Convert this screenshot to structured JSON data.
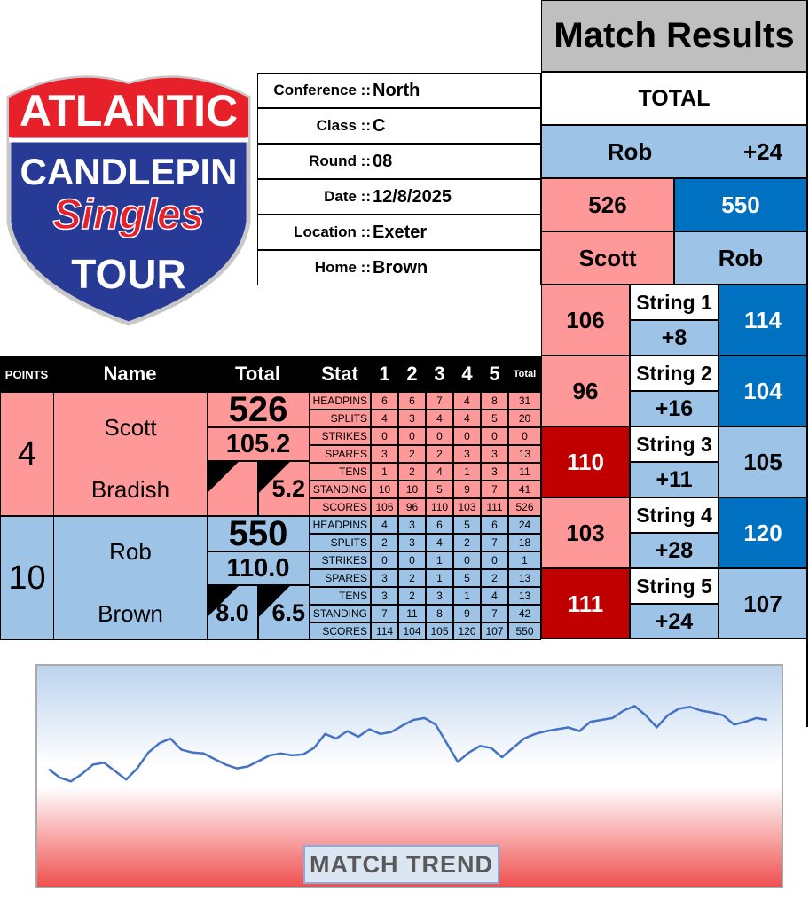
{
  "logo": {
    "line1": "ATLANTIC",
    "line2": "CANDLEPIN",
    "line3": "Singles",
    "line4": "TOUR"
  },
  "info": [
    {
      "label": "Conference ::",
      "value": "North"
    },
    {
      "label": "Class ::",
      "value": "C"
    },
    {
      "label": "Round ::",
      "value": "08"
    },
    {
      "label": "Date ::",
      "value": "12/8/2025"
    },
    {
      "label": "Location ::",
      "value": "Exeter"
    },
    {
      "label": "Home ::",
      "value": "Brown"
    }
  ],
  "results": {
    "title": "Match Results",
    "total_label": "TOTAL",
    "leader": "Rob",
    "margin": "+24",
    "scores": [
      "526",
      "550"
    ],
    "names": [
      "Scott",
      "Rob"
    ],
    "strings": [
      {
        "left": "106",
        "label": "String 1",
        "diff": "+8",
        "right": "114"
      },
      {
        "left": "96",
        "label": "String 2",
        "diff": "+16",
        "right": "104"
      },
      {
        "left": "110",
        "label": "String 3",
        "diff": "+11",
        "right": "105"
      },
      {
        "left": "103",
        "label": "String 4",
        "diff": "+28",
        "right": "120"
      },
      {
        "left": "111",
        "label": "String 5",
        "diff": "+24",
        "right": "107"
      }
    ]
  },
  "table": {
    "header": [
      "POINTS",
      "Name",
      "Total",
      "Stat",
      "1",
      "2",
      "3",
      "4",
      "5",
      "Total"
    ],
    "players": [
      {
        "points": "4",
        "first": "Scott",
        "last": "Bradish",
        "total": "526",
        "average": "105.2",
        "right_stat": "5.2",
        "stats": [
          {
            "name": "HEADPINS",
            "values": [
              6,
              6,
              7,
              4,
              8,
              31
            ]
          },
          {
            "name": "SPLITS",
            "values": [
              4,
              3,
              4,
              4,
              5,
              20
            ]
          },
          {
            "name": "STRIKES",
            "values": [
              0,
              0,
              0,
              0,
              0,
              0
            ]
          },
          {
            "name": "SPARES",
            "values": [
              3,
              2,
              2,
              3,
              3,
              13
            ]
          },
          {
            "name": "TENS",
            "values": [
              1,
              2,
              4,
              1,
              3,
              11
            ]
          },
          {
            "name": "STANDING",
            "values": [
              10,
              10,
              5,
              9,
              7,
              41
            ]
          },
          {
            "name": "SCORES",
            "values": [
              106,
              96,
              110,
              103,
              111,
              526
            ]
          }
        ]
      },
      {
        "points": "10",
        "first": "Rob",
        "last": "Brown",
        "total": "550",
        "average": "110.0",
        "left_stat": "8.0",
        "right_stat": "6.5",
        "stats": [
          {
            "name": "HEADPINS",
            "values": [
              4,
              3,
              6,
              5,
              6,
              24
            ]
          },
          {
            "name": "SPLITS",
            "values": [
              2,
              3,
              4,
              2,
              7,
              18
            ]
          },
          {
            "name": "STRIKES",
            "values": [
              0,
              0,
              1,
              0,
              0,
              1
            ]
          },
          {
            "name": "SPARES",
            "values": [
              3,
              2,
              1,
              5,
              2,
              13
            ]
          },
          {
            "name": "TENS",
            "values": [
              3,
              2,
              3,
              1,
              4,
              13
            ]
          },
          {
            "name": "STANDING",
            "values": [
              7,
              11,
              8,
              9,
              7,
              42
            ]
          },
          {
            "name": "SCORES",
            "values": [
              114,
              104,
              105,
              120,
              107,
              550
            ]
          }
        ]
      }
    ]
  },
  "trend": {
    "title": "MATCH TREND",
    "ylim": [
      -100,
      140
    ],
    "color": "#4472c4",
    "values": [
      27,
      18,
      14,
      22,
      32,
      34,
      25,
      16,
      28,
      45,
      55,
      60,
      48,
      45,
      44,
      38,
      32,
      28,
      30,
      36,
      42,
      44,
      42,
      43,
      50,
      65,
      60,
      68,
      62,
      70,
      65,
      67,
      74,
      80,
      82,
      75,
      55,
      35,
      45,
      52,
      50,
      40,
      50,
      60,
      65,
      68,
      70,
      72,
      68,
      78,
      80,
      82,
      90,
      95,
      85,
      72,
      85,
      92,
      94,
      90,
      88,
      85,
      75,
      78,
      82,
      80
    ]
  }
}
